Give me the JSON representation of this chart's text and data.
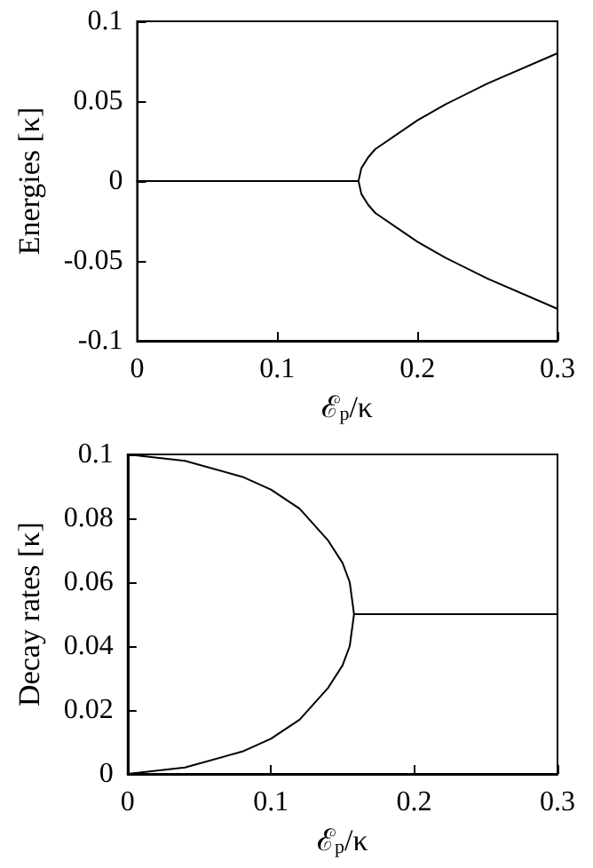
{
  "chart_data": [
    {
      "type": "line",
      "xlabel": "ℰ$_{p}$/κ",
      "ylabel": "Energies [κ]",
      "xlim": [
        0,
        0.3
      ],
      "xticks": [
        0,
        0.1,
        0.2,
        0.3
      ],
      "ylim": [
        -0.1,
        0.1
      ],
      "yticks": [
        -0.1,
        -0.05,
        0,
        0.05,
        0.1
      ],
      "grid": false,
      "marker": "none",
      "line_style": "solid",
      "series": [
        {
          "color": "#000000",
          "x": [
            0,
            0.158,
            0.16,
            0.165,
            0.17,
            0.2,
            0.22,
            0.25,
            0.3
          ],
          "values": [
            0,
            0,
            0.008,
            0.015,
            0.02,
            0.038,
            0.048,
            0.061,
            0.08
          ]
        },
        {
          "color": "#000000",
          "x": [
            0,
            0.158,
            0.16,
            0.165,
            0.17,
            0.2,
            0.22,
            0.25,
            0.3
          ],
          "values": [
            0,
            0,
            -0.008,
            -0.015,
            -0.02,
            -0.038,
            -0.048,
            -0.061,
            -0.08
          ]
        }
      ]
    },
    {
      "type": "line",
      "xlabel": "ℰ$_{p}$/κ",
      "ylabel": "Decay rates [κ]",
      "xlim": [
        0,
        0.3
      ],
      "xticks": [
        0,
        0.1,
        0.2,
        0.3
      ],
      "ylim": [
        0,
        0.1
      ],
      "yticks": [
        0,
        0.02,
        0.04,
        0.06,
        0.08,
        0.1
      ],
      "grid": false,
      "marker": "none",
      "line_style": "solid",
      "series": [
        {
          "color": "#000000",
          "x": [
            0,
            0.04,
            0.08,
            0.1,
            0.12,
            0.14,
            0.15,
            0.155,
            0.158,
            0.3
          ],
          "values": [
            0.1,
            0.098,
            0.093,
            0.089,
            0.083,
            0.073,
            0.066,
            0.06,
            0.05,
            0.05
          ]
        },
        {
          "color": "#000000",
          "x": [
            0,
            0.04,
            0.08,
            0.1,
            0.12,
            0.14,
            0.15,
            0.155,
            0.158,
            0.3
          ],
          "values": [
            0,
            0.002,
            0.007,
            0.011,
            0.017,
            0.027,
            0.034,
            0.04,
            0.05,
            0.05
          ]
        }
      ]
    }
  ]
}
